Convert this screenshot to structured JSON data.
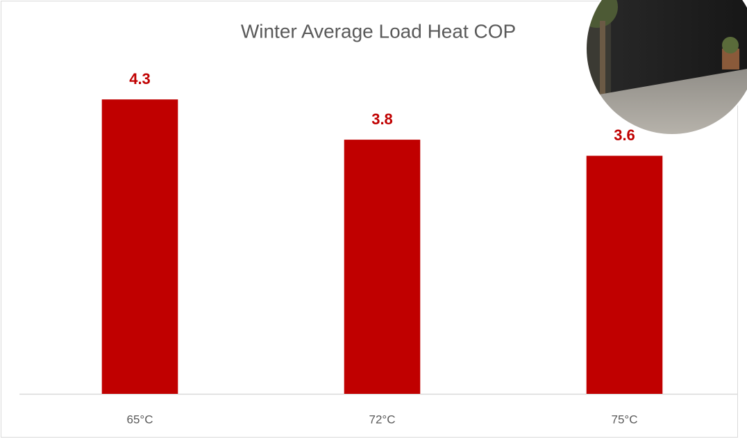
{
  "chart_data": {
    "type": "bar",
    "title": "Winter Average Load Heat COP",
    "categories": [
      "65°C",
      "72°C",
      "75°C"
    ],
    "values": [
      4.3,
      3.8,
      3.6
    ],
    "color": "#c00000",
    "ylim": [
      0.6,
      5
    ]
  }
}
